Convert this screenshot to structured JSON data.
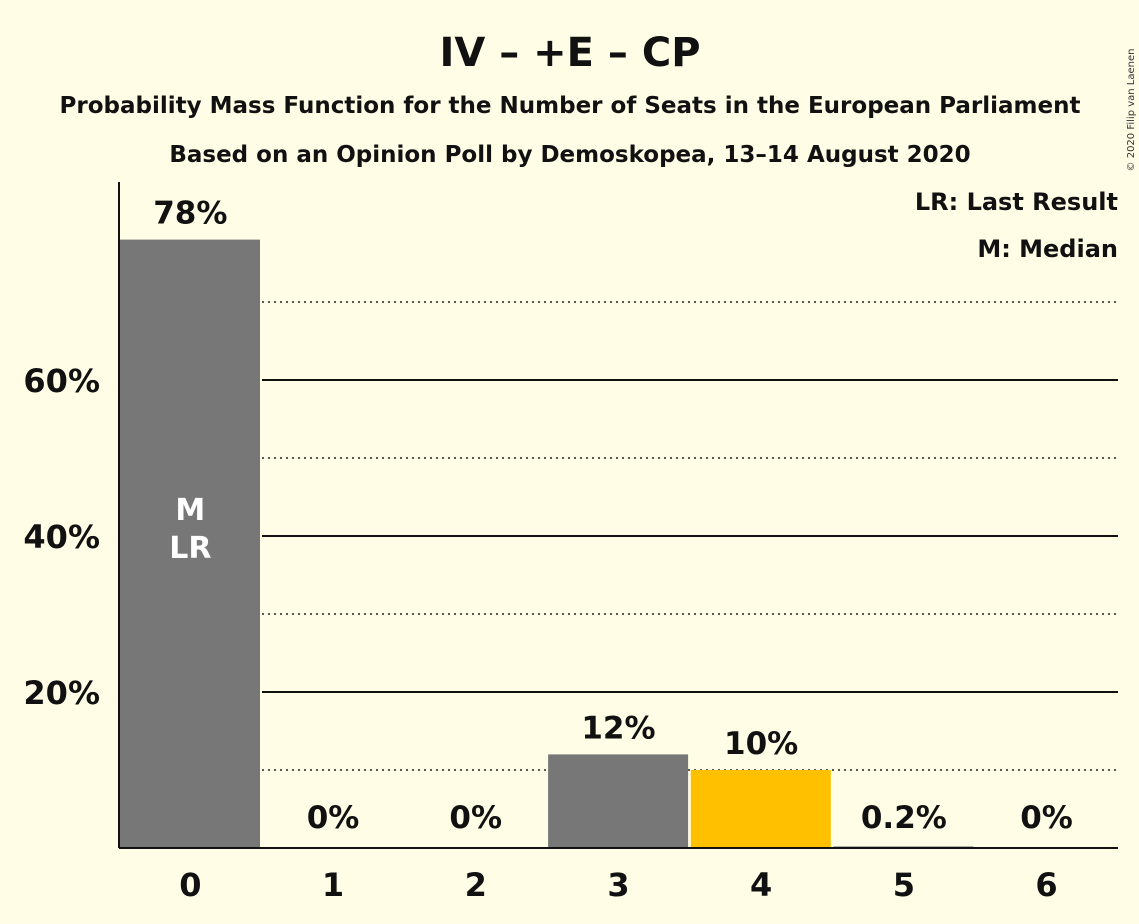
{
  "chart_data": {
    "type": "bar",
    "title": "IV – +E – CP",
    "subtitle": "Probability Mass Function for the Number of Seats in the European Parliament",
    "subtitle2": "Based on an Opinion Poll by Demoskopea, 13–14 August 2020",
    "categories": [
      "0",
      "1",
      "2",
      "3",
      "4",
      "5",
      "6"
    ],
    "values": [
      78,
      0,
      0,
      12,
      10,
      0.2,
      0
    ],
    "data_labels": [
      "78%",
      "0%",
      "0%",
      "12%",
      "10%",
      "0.2%",
      "0%"
    ],
    "bar_colors": [
      "#777777",
      "#777777",
      "#777777",
      "#777777",
      "#FFC000",
      "#777777",
      "#777777"
    ],
    "ylim": [
      0,
      85
    ],
    "yticks": [
      20,
      40,
      60
    ],
    "ytick_labels": [
      "20%",
      "40%",
      "60%"
    ],
    "minor_gridlines": [
      10,
      30,
      50,
      70
    ],
    "in_bar_annotation": {
      "category": "0",
      "lines": [
        "M",
        "LR"
      ]
    },
    "legend": [
      "LR: Last Result",
      "M: Median"
    ],
    "legend_position": "top-right",
    "copyright": "© 2020 Filip van Laenen"
  }
}
